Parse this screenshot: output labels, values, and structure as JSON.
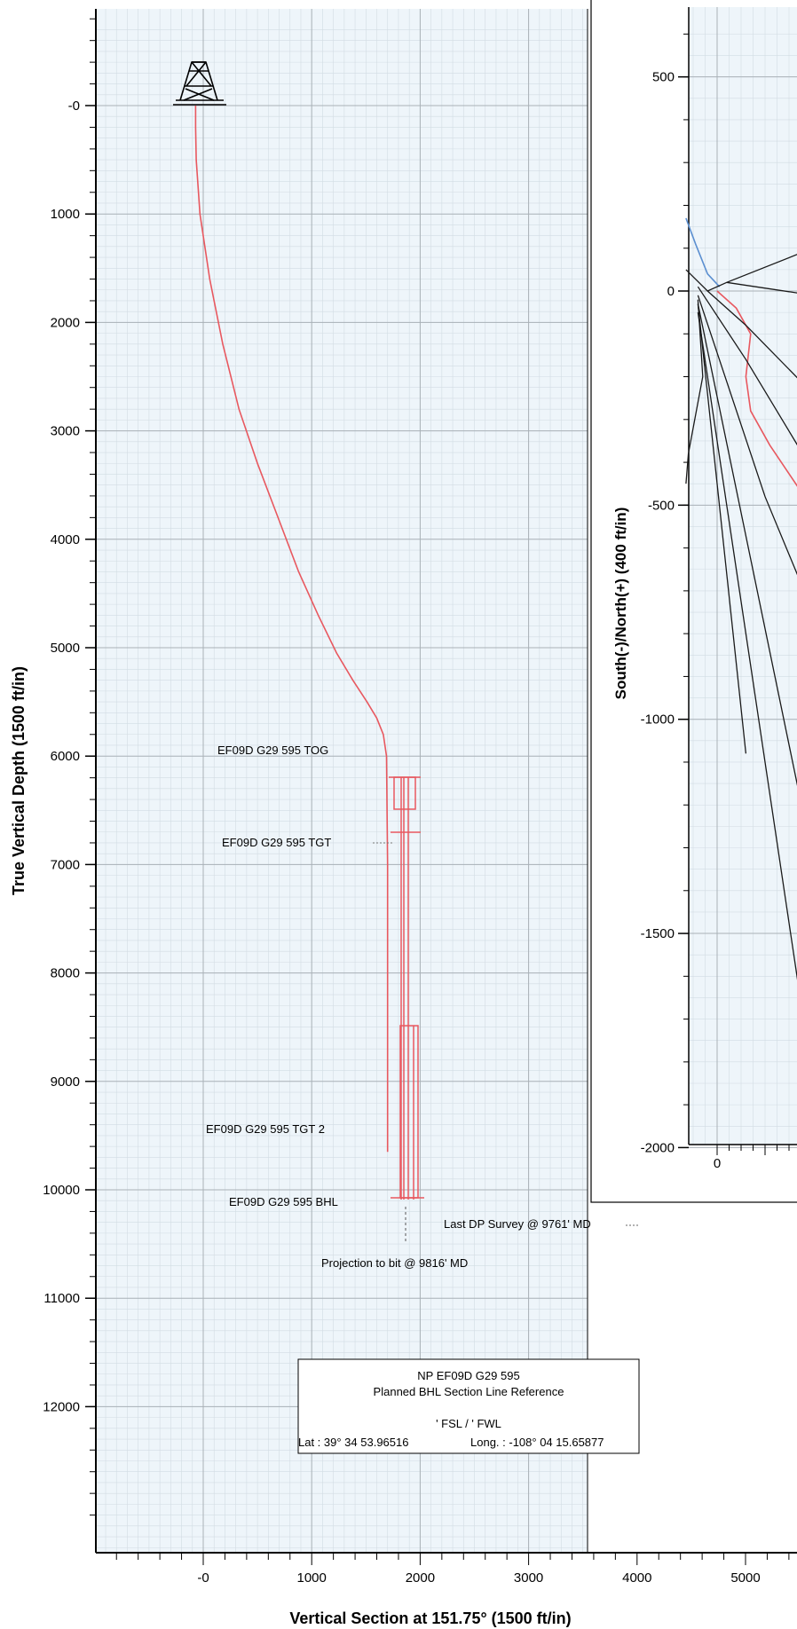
{
  "chart_data": [
    {
      "type": "line",
      "title": "",
      "xlabel": "Vertical Section at 151.75° (1500 ft/in)",
      "ylabel": "True Vertical Depth (1500 ft/in)",
      "xlim": [
        -1000,
        5000
      ],
      "ylim": [
        12600,
        -900
      ],
      "y_inverted": true,
      "grid": true,
      "x_ticks": [
        {
          "value": 0,
          "label": "-0"
        },
        {
          "value": 1000,
          "label": "1000"
        },
        {
          "value": 2000,
          "label": "2000"
        },
        {
          "value": 3000,
          "label": "3000"
        },
        {
          "value": 4000,
          "label": "4000"
        },
        {
          "value": 5000,
          "label": "5000"
        }
      ],
      "y_ticks": [
        {
          "value": 0,
          "label": "-0"
        },
        {
          "value": 1000,
          "label": "1000"
        },
        {
          "value": 2000,
          "label": "2000"
        },
        {
          "value": 3000,
          "label": "3000"
        },
        {
          "value": 4000,
          "label": "4000"
        },
        {
          "value": 5000,
          "label": "5000"
        },
        {
          "value": 6000,
          "label": "6000"
        },
        {
          "value": 7000,
          "label": "7000"
        },
        {
          "value": 8000,
          "label": "8000"
        },
        {
          "value": 9000,
          "label": "9000"
        },
        {
          "value": 10000,
          "label": "10000"
        },
        {
          "value": 11000,
          "label": "11000"
        },
        {
          "value": 12000,
          "label": "12000"
        }
      ],
      "series": [
        {
          "color": "#e8585f",
          "x": [
            -70,
            -70,
            -65,
            -30,
            60,
            180,
            330,
            500,
            690,
            880,
            1060,
            1230,
            1380,
            1510,
            1600,
            1660,
            1690,
            1700,
            1700,
            1700
          ],
          "y": [
            0,
            200,
            500,
            1000,
            1600,
            2200,
            2800,
            3300,
            3800,
            4300,
            4700,
            5050,
            5300,
            5500,
            5650,
            5800,
            6000,
            7000,
            9000,
            9650
          ]
        }
      ],
      "targets": [
        {
          "name": "EF09D G29 595 TOG",
          "x_range": [
            1600,
            1820
          ],
          "y_range": [
            5800,
            6100
          ]
        },
        {
          "name": "EF09D G29 595 TGT",
          "x": 1700,
          "y": 6300
        },
        {
          "name": "EF09D G29 595 TGT 2",
          "x_range": [
            1620,
            1820
          ],
          "y_range": [
            8000,
            9500
          ]
        },
        {
          "name": "EF09D G29 595 BHL",
          "x": 1700,
          "y": 9500
        }
      ],
      "target_labels": [
        "EF09D G29 595 TOG",
        "EF09D G29 595 TGT",
        "EF09D G29 595 TGT 2",
        "EF09D G29 595 BHL"
      ],
      "annotations": [
        "Last DP Survey @ 9761' MD",
        "Projection to bit @ 9816' MD"
      ],
      "info_box": {
        "line1": "NP EF09D G29 595",
        "line2": "Planned BHL Section Line Reference",
        "line3": "' FSL / ' FWL",
        "lat": "Lat :  39° 34 53.96516",
        "long": "Long. :  -108° 04 15.65877"
      },
      "colors": {
        "well_path": "#e8585f",
        "grid": "#b8b8b8"
      }
    },
    {
      "type": "line",
      "title": "",
      "ylabel": "South(-)/North(+) (400 ft/in)",
      "xlabel": "",
      "xlim": [
        -100,
        200
      ],
      "ylim": [
        -2000,
        600
      ],
      "grid": true,
      "y_ticks": [
        {
          "value": 500,
          "label": "500"
        },
        {
          "value": 0,
          "label": "0"
        },
        {
          "value": -500,
          "label": "-500"
        },
        {
          "value": -1000,
          "label": "-1000"
        },
        {
          "value": -1500,
          "label": "-1500"
        },
        {
          "value": -2000,
          "label": "-2000"
        }
      ],
      "x_ticks": [
        {
          "value": 0,
          "label": "0"
        }
      ],
      "series": [
        {
          "color": "#e8585f",
          "x": [
            0,
            40,
            70,
            60,
            70,
            110,
            170,
            200
          ],
          "y": [
            0,
            -40,
            -100,
            -200,
            -280,
            -360,
            -460,
            -510
          ]
        },
        {
          "color": "#5b8fd0",
          "x": [
            -65,
            -45,
            -20,
            5
          ],
          "y": [
            170,
            110,
            40,
            10
          ]
        },
        {
          "color": "#1a1a1a",
          "x": [
            -65,
            -20,
            20,
            200
          ],
          "y": [
            50,
            0,
            20,
            100
          ]
        },
        {
          "color": "#1a1a1a",
          "x": [
            20,
            200
          ],
          "y": [
            20,
            -10
          ]
        },
        {
          "color": "#1a1a1a",
          "x": [
            -20,
            60,
            200
          ],
          "y": [
            0,
            -80,
            -240
          ]
        },
        {
          "color": "#1a1a1a",
          "x": [
            -40,
            60,
            200
          ],
          "y": [
            10,
            -160,
            -420
          ]
        },
        {
          "color": "#1a1a1a",
          "x": [
            -40,
            100,
            200
          ],
          "y": [
            -10,
            -480,
            -750
          ]
        },
        {
          "color": "#1a1a1a",
          "x": [
            -40,
            200
          ],
          "y": [
            -30,
            -1330
          ]
        },
        {
          "color": "#1a1a1a",
          "x": [
            -40,
            180
          ],
          "y": [
            -50,
            -1700
          ]
        },
        {
          "color": "#1a1a1a",
          "x": [
            -40,
            60
          ],
          "y": [
            -30,
            -1080
          ]
        },
        {
          "color": "#1a1a1a",
          "x": [
            -40,
            -30
          ],
          "y": [
            -20,
            -200
          ]
        },
        {
          "color": "#1a1a1a",
          "x": [
            -30,
            -60,
            -65
          ],
          "y": [
            -200,
            -380,
            -450
          ]
        }
      ]
    }
  ]
}
